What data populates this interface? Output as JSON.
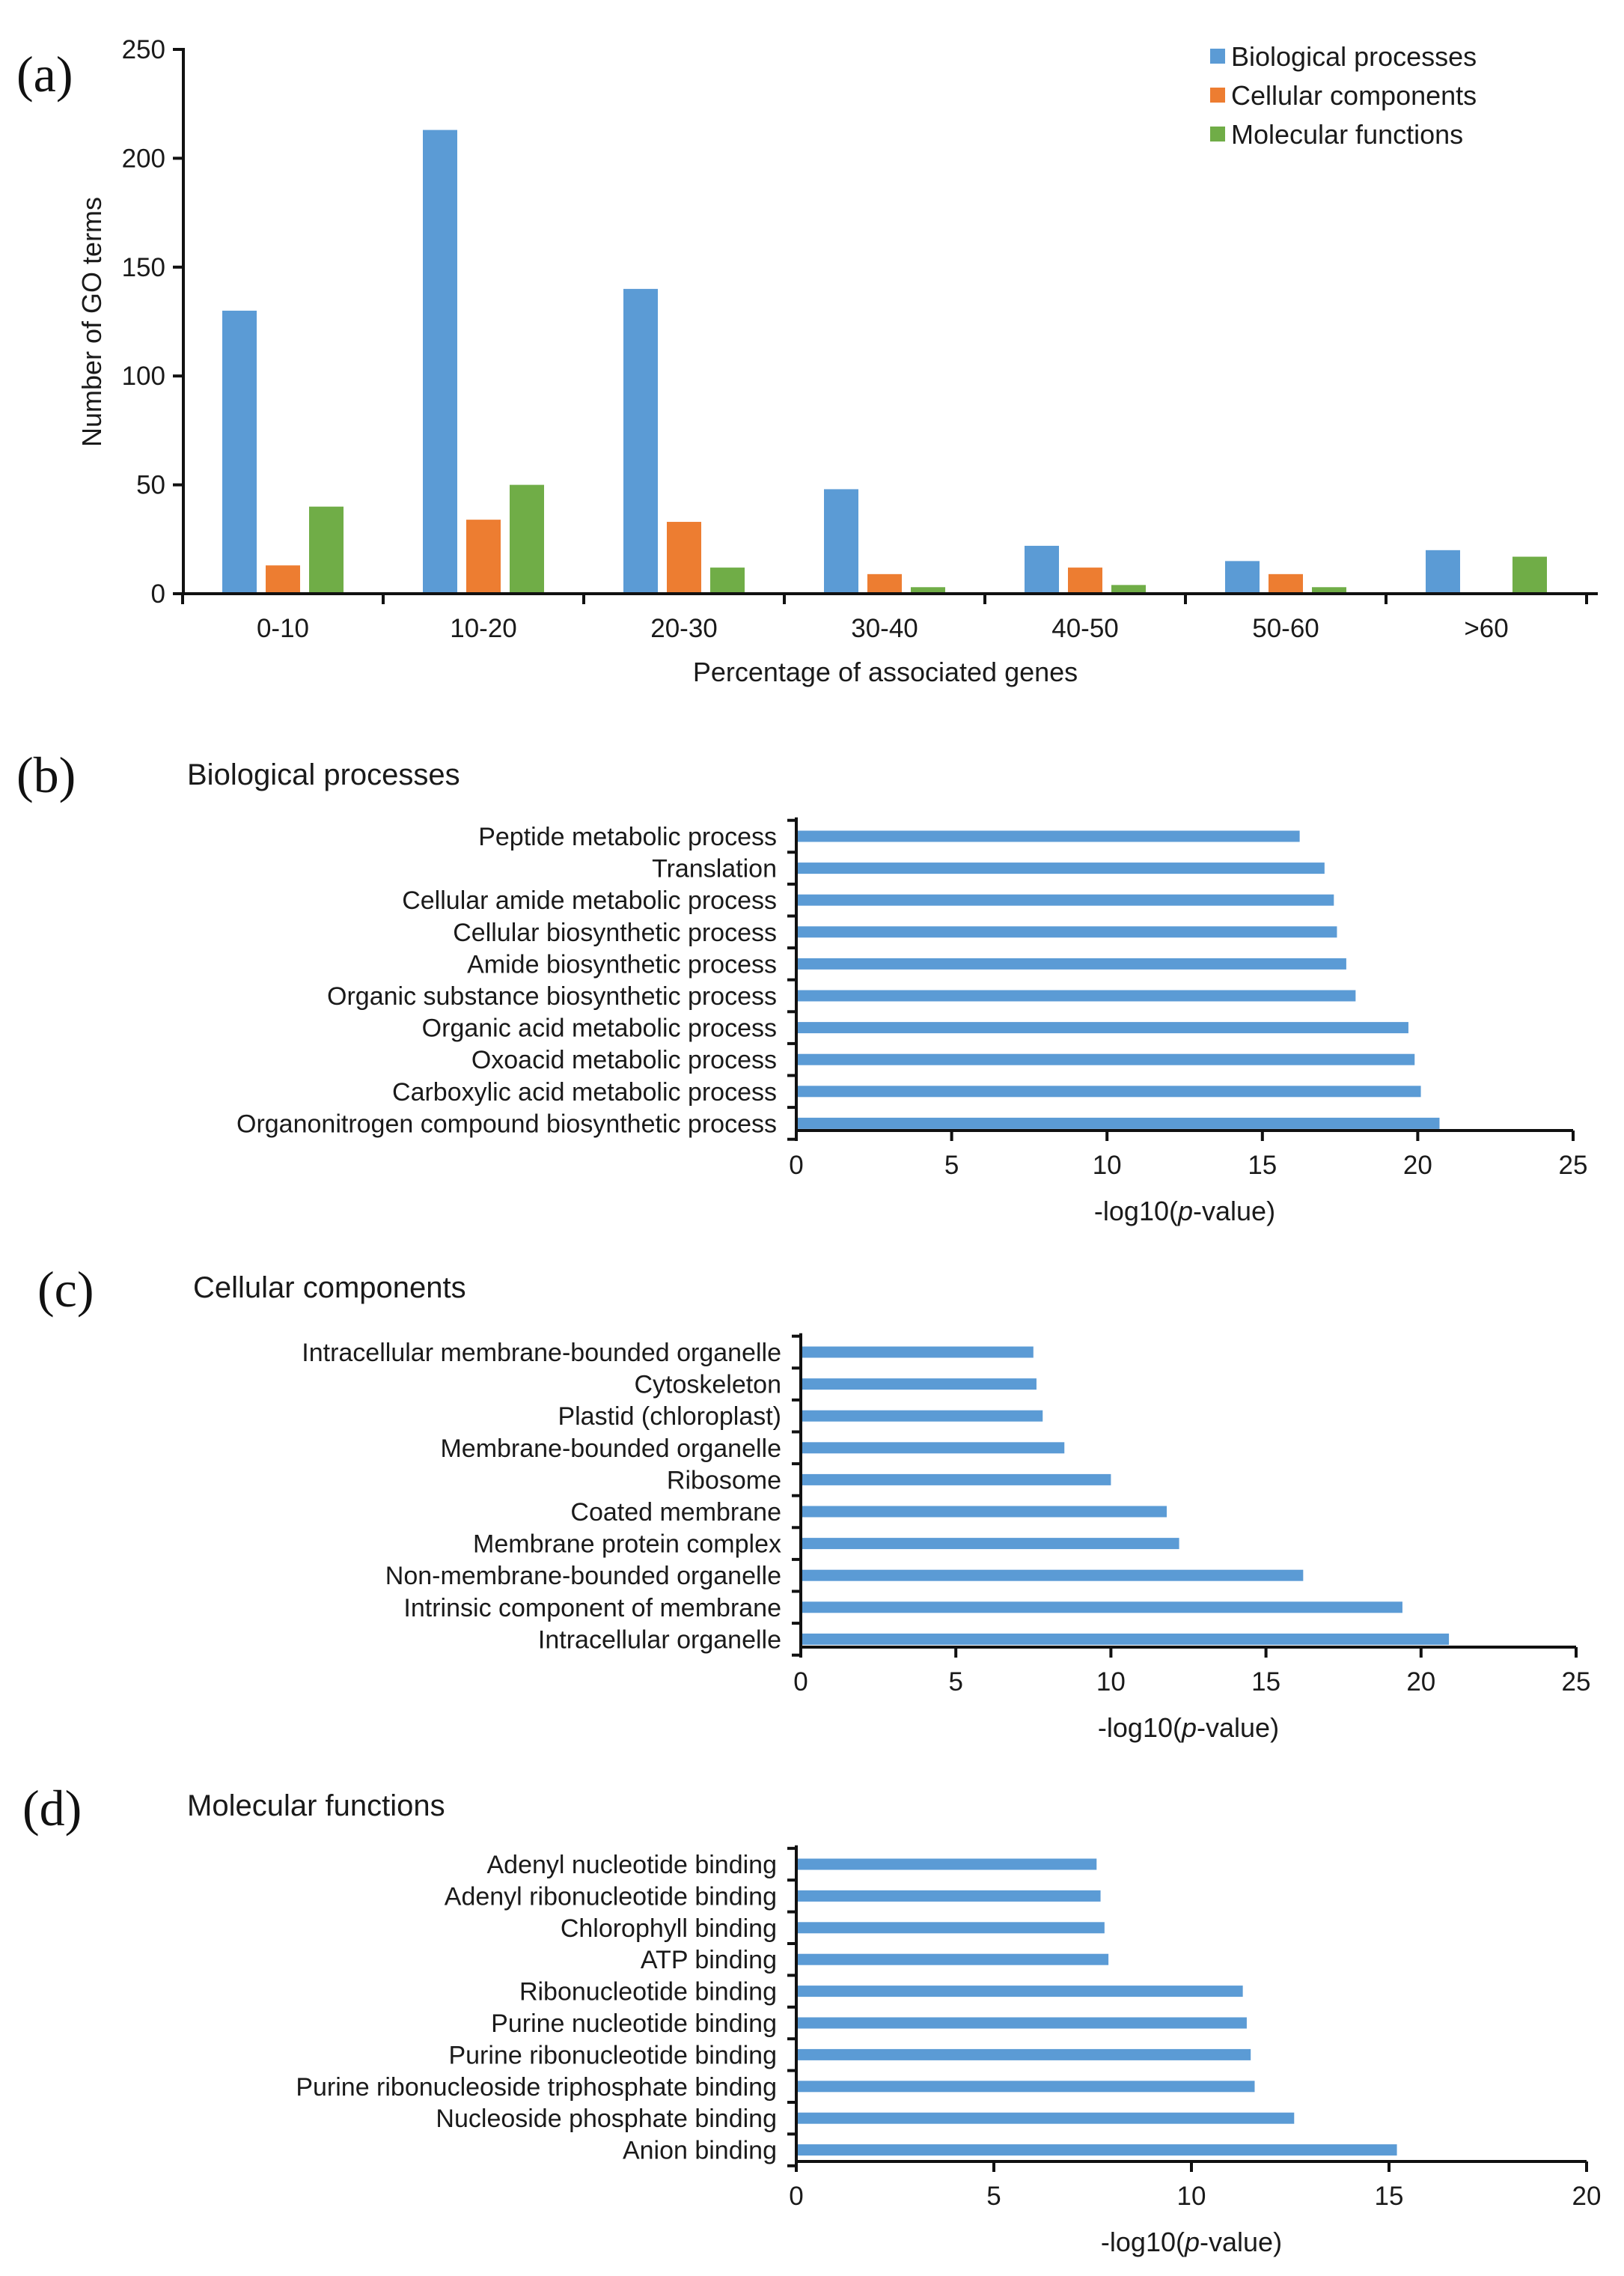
{
  "chart_data": [
    {
      "panel": "(a)",
      "type": "bar",
      "title": "",
      "xlabel": "Percentage of associated genes",
      "ylabel": "Number of GO terms",
      "ylim": [
        0,
        250
      ],
      "yticks": [
        0,
        50,
        100,
        150,
        200,
        250
      ],
      "categories": [
        "0-10",
        "10-20",
        "20-30",
        "30-40",
        "40-50",
        "50-60",
        ">60"
      ],
      "legend_position": "top-right",
      "series": [
        {
          "name": "Biological processes",
          "color": "#5b9bd5",
          "values": [
            130,
            213,
            140,
            48,
            22,
            15,
            20
          ]
        },
        {
          "name": "Cellular components",
          "color": "#ed7d31",
          "values": [
            13,
            34,
            33,
            9,
            12,
            9,
            0
          ]
        },
        {
          "name": "Molecular functions",
          "color": "#70ad47",
          "values": [
            40,
            50,
            12,
            3,
            4,
            3,
            17
          ]
        }
      ]
    },
    {
      "panel": "(b)",
      "type": "bar",
      "orientation": "horizontal",
      "title": "Biological processes",
      "xlabel": "-log10(",
      "xlabel_italic": "p",
      "xlabel_suffix": "-value)",
      "xlim": [
        0,
        25
      ],
      "xticks": [
        0,
        5,
        10,
        15,
        20,
        25
      ],
      "color": "#5b9bd5",
      "categories": [
        "Peptide metabolic process",
        "Translation",
        "Cellular amide metabolic process",
        "Cellular biosynthetic process",
        "Amide biosynthetic process",
        "Organic substance biosynthetic process",
        "Organic acid metabolic process",
        "Oxoacid metabolic process",
        "Carboxylic acid metabolic process",
        "Organonitrogen compound biosynthetic process"
      ],
      "values": [
        16.2,
        17.0,
        17.3,
        17.4,
        17.7,
        18.0,
        19.7,
        19.9,
        20.1,
        20.7
      ]
    },
    {
      "panel": "(c)",
      "type": "bar",
      "orientation": "horizontal",
      "title": "Cellular components",
      "xlabel": "-log10(",
      "xlabel_italic": "p",
      "xlabel_suffix": "-value)",
      "xlim": [
        0,
        25
      ],
      "xticks": [
        0,
        5,
        10,
        15,
        20,
        25
      ],
      "color": "#5b9bd5",
      "categories": [
        "Intracellular membrane-bounded organelle",
        "Cytoskeleton",
        "Plastid (chloroplast)",
        "Membrane-bounded organelle",
        "Ribosome",
        "Coated membrane",
        "Membrane protein complex",
        "Non-membrane-bounded organelle",
        "Intrinsic component of membrane",
        "Intracellular organelle"
      ],
      "values": [
        7.5,
        7.6,
        7.8,
        8.5,
        10.0,
        11.8,
        12.2,
        16.2,
        19.4,
        20.9
      ]
    },
    {
      "panel": "(d)",
      "type": "bar",
      "orientation": "horizontal",
      "title": "Molecular functions",
      "xlabel": "-log10(",
      "xlabel_italic": "p",
      "xlabel_suffix": "-value)",
      "xlim": [
        0,
        20
      ],
      "xticks": [
        0,
        5,
        10,
        15,
        20
      ],
      "color": "#5b9bd5",
      "categories": [
        "Adenyl nucleotide binding",
        "Adenyl ribonucleotide binding",
        "Chlorophyll binding",
        "ATP binding",
        "Ribonucleotide binding",
        "Purine nucleotide binding",
        "Purine ribonucleotide binding",
        "Purine ribonucleoside triphosphate binding",
        "Nucleoside phosphate binding",
        "Anion binding"
      ],
      "values": [
        7.6,
        7.7,
        7.8,
        7.9,
        11.3,
        11.4,
        11.5,
        11.6,
        12.6,
        15.2
      ]
    }
  ]
}
